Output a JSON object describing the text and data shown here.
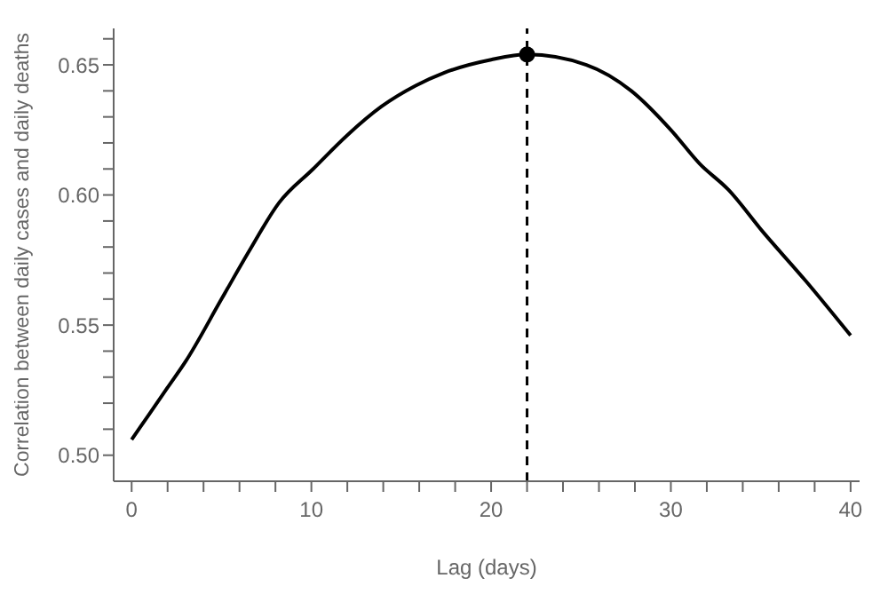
{
  "chart_data": {
    "type": "line",
    "xlabel": "Lag (days)",
    "ylabel": "Correlation between daily cases and daily deaths",
    "series": [
      {
        "color": "#000000",
        "marker": "none",
        "line_style": "solid",
        "x": [
          0,
          1,
          2,
          3,
          5,
          6.5,
          8.2,
          10.1,
          12,
          13.9,
          15.8,
          17.4,
          20,
          22,
          25.3,
          27.8,
          30,
          31.6,
          33.2,
          35.1,
          37.5,
          40
        ],
        "values": [
          0.506,
          0.516,
          0.526,
          0.536,
          0.56,
          0.578,
          0.597,
          0.61,
          0.623,
          0.634,
          0.642,
          0.647,
          0.652,
          0.654,
          0.65,
          0.64,
          0.625,
          0.612,
          0.602,
          0.586,
          0.567,
          0.546
        ]
      },
      {
        "type": "scatter",
        "color": "#000000",
        "marker": "circle",
        "x": [
          22
        ],
        "values": [
          0.654
        ]
      }
    ],
    "xlim": [
      -1,
      40.5
    ],
    "xticks": [
      0,
      {
        "value": 2,
        "label": null
      },
      {
        "value": 4,
        "label": null
      },
      {
        "value": 6,
        "label": null
      },
      {
        "value": 8,
        "label": null
      },
      10,
      {
        "value": 12,
        "label": null
      },
      {
        "value": 14,
        "label": null
      },
      {
        "value": 16,
        "label": null
      },
      {
        "value": 18,
        "label": null
      },
      20,
      {
        "value": 22,
        "label": null
      },
      {
        "value": 24,
        "label": null
      },
      {
        "value": 26,
        "label": null
      },
      {
        "value": 28,
        "label": null
      },
      30,
      {
        "value": 32,
        "label": null
      },
      {
        "value": 34,
        "label": null
      },
      {
        "value": 36,
        "label": null
      },
      {
        "value": 38,
        "label": null
      },
      40
    ],
    "ylim": [
      0.49,
      0.664
    ],
    "yticks": [
      {
        "value": 0.5,
        "label": "0.50"
      },
      {
        "value": 0.51,
        "label": null
      },
      {
        "value": 0.52,
        "label": null
      },
      {
        "value": 0.53,
        "label": null
      },
      {
        "value": 0.54,
        "label": null
      },
      {
        "value": 0.55,
        "label": "0.55"
      },
      {
        "value": 0.56,
        "label": null
      },
      {
        "value": 0.57,
        "label": null
      },
      {
        "value": 0.58,
        "label": null
      },
      {
        "value": 0.59,
        "label": null
      },
      {
        "value": 0.6,
        "label": "0.60"
      },
      {
        "value": 0.61,
        "label": null
      },
      {
        "value": 0.62,
        "label": null
      },
      {
        "value": 0.63,
        "label": null
      },
      {
        "value": 0.64,
        "label": null
      },
      {
        "value": 0.65,
        "label": "0.65"
      },
      {
        "value": 0.66,
        "label": null
      }
    ],
    "ref_lines": [
      {
        "axis": "x",
        "value": 22,
        "color": "#000000",
        "line_style": "dashed"
      }
    ],
    "grid": false,
    "legend": false
  }
}
